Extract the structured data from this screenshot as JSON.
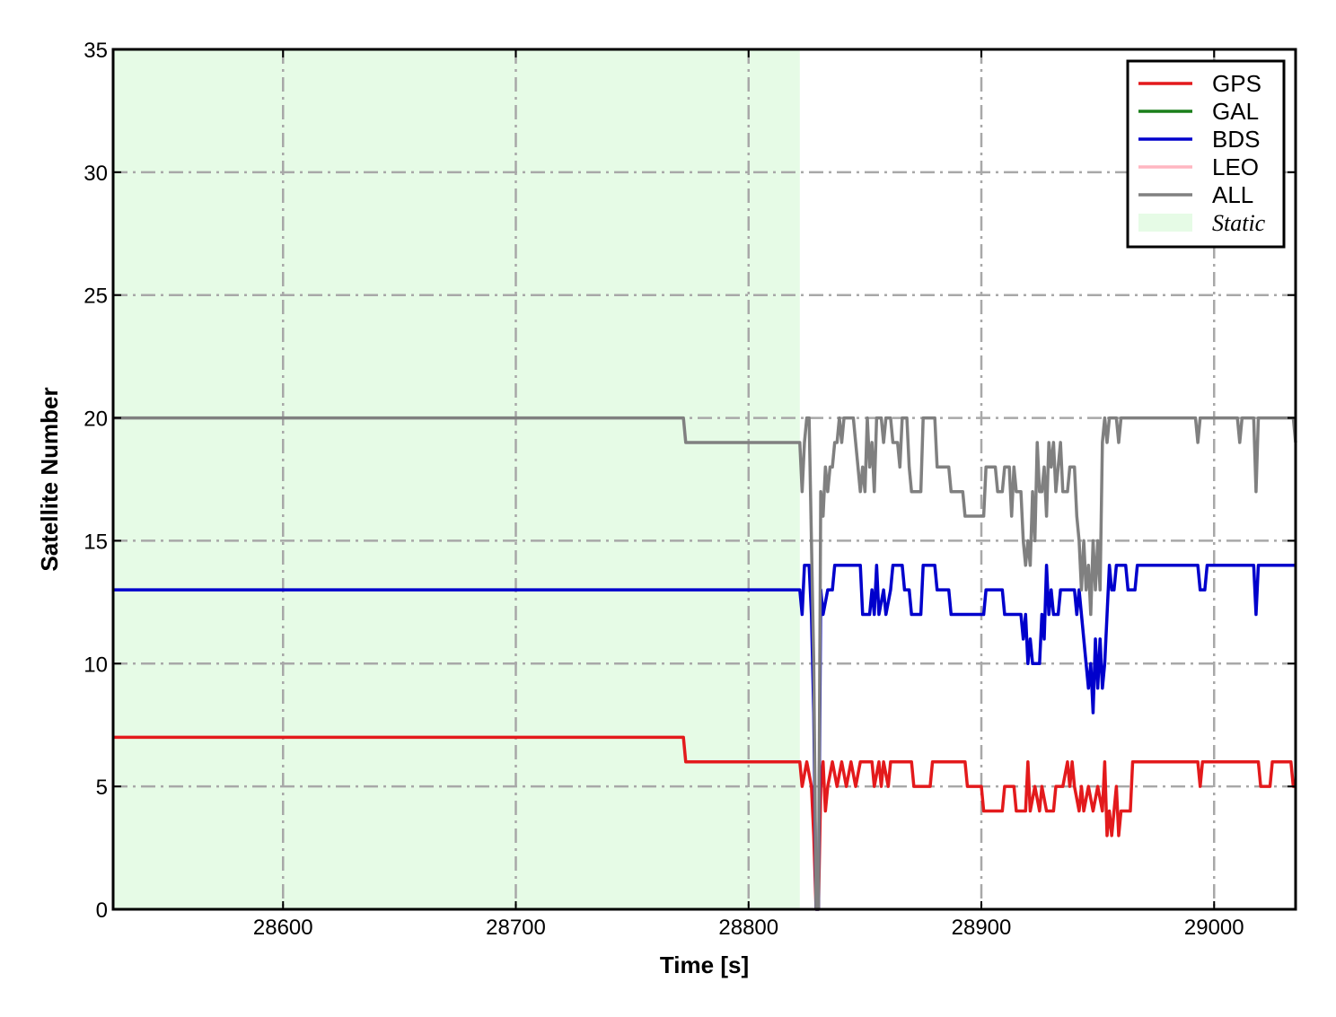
{
  "chart_data": {
    "type": "line",
    "xlabel": "Time [s]",
    "ylabel": "Satellite Number",
    "xlim": [
      28527,
      29035
    ],
    "ylim": [
      0,
      35
    ],
    "x_ticks": [
      28600,
      28700,
      28800,
      28900,
      29000
    ],
    "x_tick_labels": [
      "28600",
      "28700",
      "28800",
      "28900",
      "29000"
    ],
    "y_ticks": [
      0,
      5,
      10,
      15,
      20,
      25,
      30,
      35
    ],
    "y_tick_labels": [
      "0",
      "5",
      "10",
      "15",
      "20",
      "25",
      "30",
      "35"
    ],
    "grid": true,
    "legend_position": "top-right",
    "shaded_region": {
      "label": "Static",
      "x_range": [
        28527,
        28822
      ],
      "color": "#e6fbe6"
    },
    "series": [
      {
        "name": "GPS",
        "color": "#e31a1c",
        "points": [
          [
            28527,
            7
          ],
          [
            28772,
            7
          ],
          [
            28773,
            6
          ],
          [
            28822,
            6
          ],
          [
            28823,
            5
          ],
          [
            28825,
            6
          ],
          [
            28827,
            5
          ],
          [
            28828,
            3
          ],
          [
            28829,
            0
          ],
          [
            28830,
            0
          ],
          [
            28831,
            5
          ],
          [
            28832,
            6
          ],
          [
            28833,
            4
          ],
          [
            28834,
            5
          ],
          [
            28836,
            6
          ],
          [
            28838,
            5
          ],
          [
            28840,
            6
          ],
          [
            28842,
            5
          ],
          [
            28844,
            6
          ],
          [
            28846,
            5
          ],
          [
            28848,
            6
          ],
          [
            28853,
            6
          ],
          [
            28854,
            5
          ],
          [
            28856,
            6
          ],
          [
            28857,
            5
          ],
          [
            28858,
            6
          ],
          [
            28860,
            5
          ],
          [
            28861,
            6
          ],
          [
            28870,
            6
          ],
          [
            28871,
            5
          ],
          [
            28878,
            5
          ],
          [
            28879,
            6
          ],
          [
            28893,
            6
          ],
          [
            28894,
            5
          ],
          [
            28900,
            5
          ],
          [
            28901,
            4
          ],
          [
            28909,
            4
          ],
          [
            28910,
            5
          ],
          [
            28914,
            5
          ],
          [
            28915,
            4
          ],
          [
            28919,
            4
          ],
          [
            28920,
            6
          ],
          [
            28921,
            4
          ],
          [
            28923,
            5
          ],
          [
            28925,
            4
          ],
          [
            28926,
            5
          ],
          [
            28928,
            4
          ],
          [
            28931,
            4
          ],
          [
            28932,
            5
          ],
          [
            28935,
            5
          ],
          [
            28937,
            6
          ],
          [
            28938,
            5
          ],
          [
            28939,
            6
          ],
          [
            28940,
            5
          ],
          [
            28942,
            4
          ],
          [
            28943,
            5
          ],
          [
            28944,
            4
          ],
          [
            28946,
            5
          ],
          [
            28948,
            4
          ],
          [
            28950,
            5
          ],
          [
            28952,
            4
          ],
          [
            28953,
            6
          ],
          [
            28954,
            3
          ],
          [
            28955,
            4
          ],
          [
            28956,
            3
          ],
          [
            28957,
            4
          ],
          [
            28958,
            5
          ],
          [
            28959,
            3
          ],
          [
            28960,
            4
          ],
          [
            28964,
            4
          ],
          [
            28965,
            6
          ],
          [
            28993,
            6
          ],
          [
            28994,
            5
          ],
          [
            28995,
            6
          ],
          [
            29019,
            6
          ],
          [
            29020,
            5
          ],
          [
            29024,
            5
          ],
          [
            29025,
            6
          ],
          [
            29033,
            6
          ],
          [
            29034,
            5
          ],
          [
            29035,
            5
          ]
        ]
      },
      {
        "name": "GAL",
        "color": "#1a7f1a",
        "points": []
      },
      {
        "name": "BDS",
        "color": "#0000cc",
        "points": [
          [
            28527,
            13
          ],
          [
            28822,
            13
          ],
          [
            28823,
            12
          ],
          [
            28824,
            14
          ],
          [
            28826,
            14
          ],
          [
            28827,
            12
          ],
          [
            28828,
            8
          ],
          [
            28829,
            0
          ],
          [
            28830,
            0
          ],
          [
            28831,
            13
          ],
          [
            28832,
            12
          ],
          [
            28834,
            13
          ],
          [
            28836,
            13
          ],
          [
            28837,
            14
          ],
          [
            28848,
            14
          ],
          [
            28849,
            12
          ],
          [
            28852,
            12
          ],
          [
            28853,
            13
          ],
          [
            28854,
            12
          ],
          [
            28855,
            14
          ],
          [
            28856,
            12
          ],
          [
            28858,
            13
          ],
          [
            28859,
            12
          ],
          [
            28861,
            13
          ],
          [
            28862,
            14
          ],
          [
            28866,
            14
          ],
          [
            28867,
            13
          ],
          [
            28869,
            13
          ],
          [
            28870,
            12
          ],
          [
            28874,
            12
          ],
          [
            28875,
            14
          ],
          [
            28880,
            14
          ],
          [
            28881,
            13
          ],
          [
            28886,
            13
          ],
          [
            28887,
            12
          ],
          [
            28901,
            12
          ],
          [
            28902,
            13
          ],
          [
            28909,
            13
          ],
          [
            28910,
            12
          ],
          [
            28917,
            12
          ],
          [
            28918,
            11
          ],
          [
            28919,
            12
          ],
          [
            28920,
            10
          ],
          [
            28921,
            11
          ],
          [
            28922,
            10
          ],
          [
            28925,
            10
          ],
          [
            28926,
            12
          ],
          [
            28927,
            11
          ],
          [
            28928,
            14
          ],
          [
            28929,
            12
          ],
          [
            28930,
            13
          ],
          [
            28931,
            12
          ],
          [
            28933,
            12
          ],
          [
            28934,
            13
          ],
          [
            28940,
            13
          ],
          [
            28941,
            12
          ],
          [
            28942,
            13
          ],
          [
            28943,
            12
          ],
          [
            28944,
            11
          ],
          [
            28945,
            10
          ],
          [
            28946,
            9
          ],
          [
            28947,
            10
          ],
          [
            28948,
            8
          ],
          [
            28949,
            11
          ],
          [
            28950,
            9
          ],
          [
            28951,
            11
          ],
          [
            28952,
            9
          ],
          [
            28953,
            10
          ],
          [
            28954,
            12
          ],
          [
            28955,
            14
          ],
          [
            28956,
            13
          ],
          [
            28957,
            13
          ],
          [
            28958,
            14
          ],
          [
            28962,
            14
          ],
          [
            28963,
            13
          ],
          [
            28966,
            13
          ],
          [
            28967,
            14
          ],
          [
            28993,
            14
          ],
          [
            28994,
            13
          ],
          [
            28996,
            13
          ],
          [
            28997,
            14
          ],
          [
            29017,
            14
          ],
          [
            29018,
            12
          ],
          [
            29019,
            14
          ],
          [
            29035,
            14
          ]
        ]
      },
      {
        "name": "LEO",
        "color": "#ffb6c1",
        "points": []
      },
      {
        "name": "ALL",
        "color": "#808080",
        "points": [
          [
            28527,
            20
          ],
          [
            28772,
            20
          ],
          [
            28773,
            19
          ],
          [
            28822,
            19
          ],
          [
            28823,
            17
          ],
          [
            28824,
            19
          ],
          [
            28825,
            20
          ],
          [
            28826,
            20
          ],
          [
            28827,
            15
          ],
          [
            28828,
            10
          ],
          [
            28829,
            0
          ],
          [
            28830,
            0
          ],
          [
            28831,
            17
          ],
          [
            28832,
            16
          ],
          [
            28833,
            18
          ],
          [
            28834,
            17
          ],
          [
            28835,
            18
          ],
          [
            28836,
            18
          ],
          [
            28837,
            19
          ],
          [
            28838,
            19
          ],
          [
            28839,
            20
          ],
          [
            28840,
            19
          ],
          [
            28841,
            20
          ],
          [
            28845,
            20
          ],
          [
            28846,
            19
          ],
          [
            28847,
            18
          ],
          [
            28848,
            17
          ],
          [
            28849,
            18
          ],
          [
            28850,
            17
          ],
          [
            28851,
            20
          ],
          [
            28852,
            18
          ],
          [
            28853,
            19
          ],
          [
            28854,
            17
          ],
          [
            28855,
            20
          ],
          [
            28857,
            20
          ],
          [
            28858,
            19
          ],
          [
            28859,
            20
          ],
          [
            28861,
            20
          ],
          [
            28862,
            19
          ],
          [
            28864,
            19
          ],
          [
            28865,
            18
          ],
          [
            28866,
            20
          ],
          [
            28868,
            20
          ],
          [
            28869,
            18
          ],
          [
            28870,
            17
          ],
          [
            28874,
            17
          ],
          [
            28875,
            20
          ],
          [
            28880,
            20
          ],
          [
            28881,
            18
          ],
          [
            28886,
            18
          ],
          [
            28887,
            17
          ],
          [
            28892,
            17
          ],
          [
            28893,
            16
          ],
          [
            28901,
            16
          ],
          [
            28902,
            18
          ],
          [
            28906,
            18
          ],
          [
            28907,
            17
          ],
          [
            28909,
            17
          ],
          [
            28910,
            18
          ],
          [
            28912,
            18
          ],
          [
            28913,
            16
          ],
          [
            28914,
            18
          ],
          [
            28915,
            17
          ],
          [
            28917,
            17
          ],
          [
            28918,
            15
          ],
          [
            28919,
            14
          ],
          [
            28920,
            15
          ],
          [
            28921,
            14
          ],
          [
            28922,
            17
          ],
          [
            28923,
            15
          ],
          [
            28924,
            19
          ],
          [
            28925,
            17
          ],
          [
            28926,
            17
          ],
          [
            28927,
            18
          ],
          [
            28928,
            16
          ],
          [
            28929,
            19
          ],
          [
            28930,
            18
          ],
          [
            28931,
            19
          ],
          [
            28932,
            17
          ],
          [
            28933,
            18
          ],
          [
            28934,
            19
          ],
          [
            28935,
            17
          ],
          [
            28937,
            17
          ],
          [
            28938,
            18
          ],
          [
            28940,
            18
          ],
          [
            28941,
            16
          ],
          [
            28942,
            15
          ],
          [
            28943,
            13
          ],
          [
            28944,
            15
          ],
          [
            28945,
            13
          ],
          [
            28946,
            14
          ],
          [
            28947,
            12
          ],
          [
            28948,
            15
          ],
          [
            28949,
            13
          ],
          [
            28950,
            15
          ],
          [
            28951,
            13
          ],
          [
            28952,
            19
          ],
          [
            28953,
            20
          ],
          [
            28954,
            19
          ],
          [
            28955,
            20
          ],
          [
            28958,
            20
          ],
          [
            28959,
            19
          ],
          [
            28960,
            20
          ],
          [
            28992,
            20
          ],
          [
            28993,
            19
          ],
          [
            28994,
            20
          ],
          [
            29010,
            20
          ],
          [
            29011,
            19
          ],
          [
            29012,
            20
          ],
          [
            29017,
            20
          ],
          [
            29018,
            17
          ],
          [
            29019,
            20
          ],
          [
            29034,
            20
          ],
          [
            29035,
            19
          ]
        ]
      }
    ]
  },
  "legend": {
    "items": [
      {
        "label": "GPS",
        "type": "line",
        "color": "#e31a1c"
      },
      {
        "label": "GAL",
        "type": "line",
        "color": "#1a7f1a"
      },
      {
        "label": "BDS",
        "type": "line",
        "color": "#0000cc"
      },
      {
        "label": "LEO",
        "type": "line",
        "color": "#ffb6c1"
      },
      {
        "label": "ALL",
        "type": "line",
        "color": "#808080"
      },
      {
        "label": "Static",
        "type": "patch",
        "color": "#e6fbe6"
      }
    ]
  }
}
